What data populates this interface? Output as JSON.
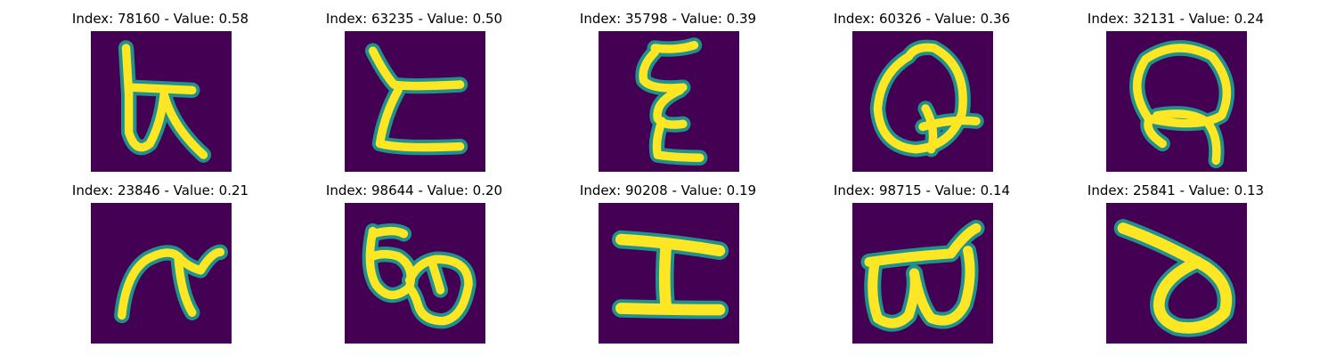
{
  "colors": {
    "background": "#440154",
    "stroke_edge": "#21918c",
    "stroke_core": "#fde725"
  },
  "panels": [
    {
      "title": "Index: 78160 - Value: 0.58",
      "glyph": "handwritten character resembling a crossed loop with a vertical stem"
    },
    {
      "title": "Index: 63235 - Value: 0.50",
      "glyph": "handwritten character resembling a zigzag L-shape"
    },
    {
      "title": "Index: 35798 - Value: 0.39",
      "glyph": "handwritten character resembling a stacked xi shape"
    },
    {
      "title": "Index: 60326 - Value: 0.36",
      "glyph": "handwritten character resembling a Q"
    },
    {
      "title": "Index: 32131 - Value: 0.24",
      "glyph": "handwritten character resembling a Q with a crossing tail"
    },
    {
      "title": "Index: 23846 - Value: 0.21",
      "glyph": "handwritten character resembling a pi shape"
    },
    {
      "title": "Index: 98644 - Value: 0.20",
      "glyph": "handwritten character resembling a looped double-bowl shape"
    },
    {
      "title": "Index: 90208 - Value: 0.19",
      "glyph": "handwritten character resembling an I-beam shape"
    },
    {
      "title": "Index: 98715 - Value: 0.14",
      "glyph": "handwritten character resembling a double-bowl shape with a hooked top"
    },
    {
      "title": "Index: 25841 - Value: 0.13",
      "glyph": "handwritten character resembling a loop with a diagonal stroke"
    }
  ]
}
